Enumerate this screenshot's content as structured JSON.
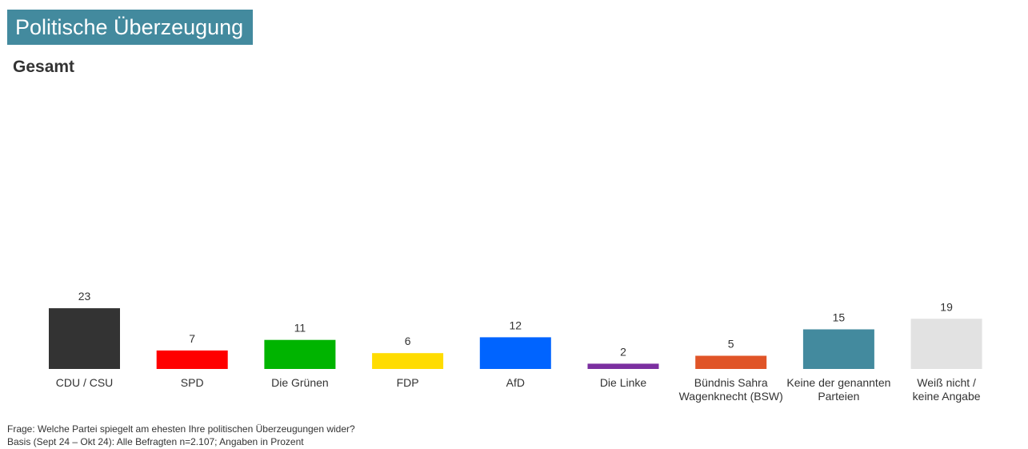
{
  "header": {
    "title": "Politische Überzeugung",
    "subtitle": "Gesamt"
  },
  "footnotes": {
    "question": "Frage: Welche Partei spiegelt am ehesten Ihre politischen Überzeugungen wider?",
    "basis": "Basis (Sept 24 – Okt 24): Alle Befragten n=2.107; Angaben in Prozent"
  },
  "chart_data": {
    "type": "bar",
    "title": "Politische Überzeugung",
    "subtitle": "Gesamt",
    "xlabel": "",
    "ylabel": "",
    "unit": "Prozent",
    "grid": false,
    "legend": "none",
    "ylim": [
      0,
      100
    ],
    "categories": [
      [
        "CDU / CSU"
      ],
      [
        "SPD"
      ],
      [
        "Die Grünen"
      ],
      [
        "FDP"
      ],
      [
        "AfD"
      ],
      [
        "Die Linke"
      ],
      [
        "Bündnis Sahra",
        "Wagenknecht (BSW)"
      ],
      [
        "Keine der genannten",
        "Parteien"
      ],
      [
        "Weiß nicht /",
        "keine Angabe"
      ]
    ],
    "values": [
      23,
      7,
      11,
      6,
      12,
      2,
      5,
      15,
      19
    ],
    "colors": [
      "#333333",
      "#ff0000",
      "#00b400",
      "#ffdc00",
      "#0064ff",
      "#7b2fa0",
      "#e05427",
      "#438a9e",
      "#e2e2e2"
    ]
  }
}
